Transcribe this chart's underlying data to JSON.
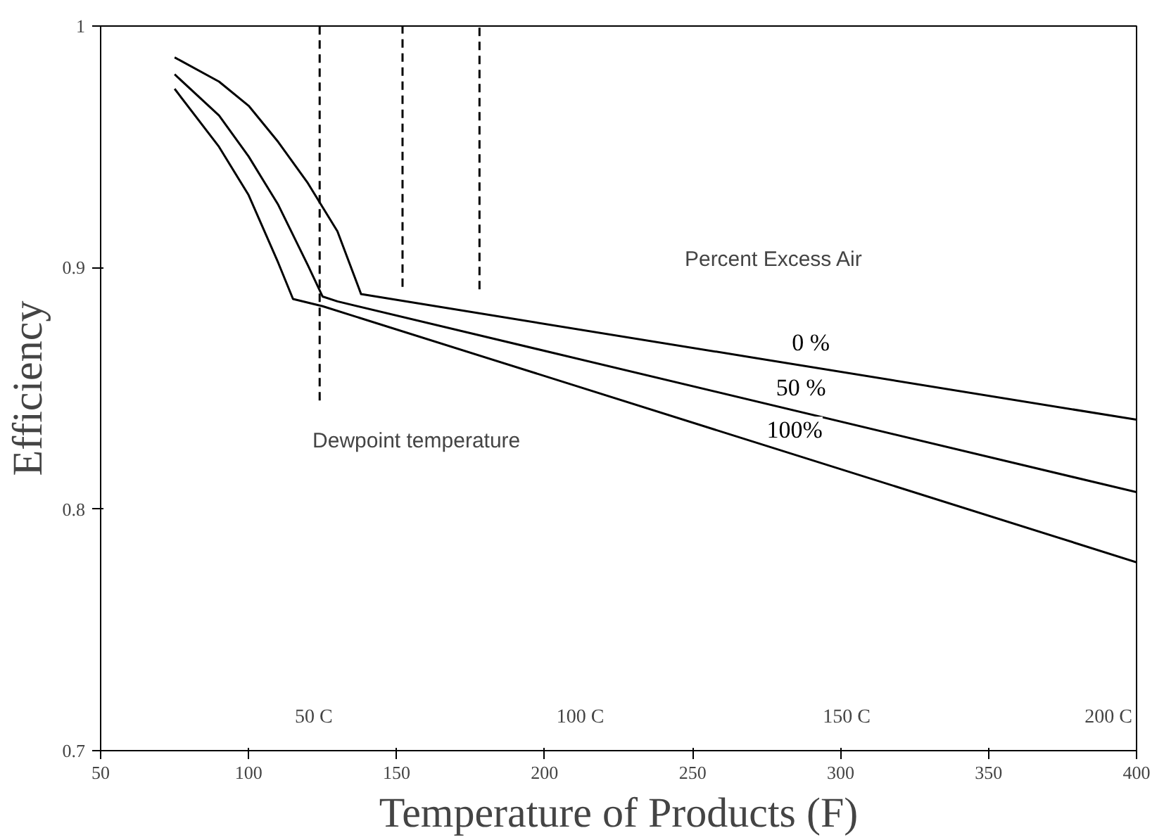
{
  "chart_data": {
    "type": "line",
    "xlabel": "Temperature of Products (F)",
    "ylabel": "Efficiency",
    "xlim": [
      50,
      400
    ],
    "xticks": [
      50,
      100,
      150,
      200,
      250,
      300,
      350,
      400
    ],
    "ylim": [
      0.7,
      1.0
    ],
    "yticks": [
      0.7,
      0.8,
      0.9,
      {
        "value": 1.0,
        "label": "1"
      }
    ],
    "grid": false,
    "marker": "none",
    "line_style": "solid",
    "series": [
      {
        "name": "0 %",
        "color": "#000000",
        "x": [
          75,
          90,
          100,
          110,
          120,
          130,
          138,
          400
        ],
        "values": [
          0.987,
          0.977,
          0.967,
          0.952,
          0.935,
          0.915,
          0.889,
          0.837
        ]
      },
      {
        "name": "50 %",
        "color": "#000000",
        "x": [
          75,
          90,
          100,
          110,
          120,
          125,
          130,
          400
        ],
        "values": [
          0.98,
          0.963,
          0.946,
          0.926,
          0.901,
          0.888,
          0.886,
          0.807
        ]
      },
      {
        "name": "100%",
        "color": "#000000",
        "x": [
          75,
          90,
          100,
          110,
          115,
          125,
          400
        ],
        "values": [
          0.974,
          0.95,
          0.93,
          0.902,
          0.887,
          0.884,
          0.778
        ]
      },
      {
        "color": "#000000",
        "line_style": "dashed",
        "x": [
          124,
          124
        ],
        "values": [
          0.845,
          1.0
        ]
      },
      {
        "color": "#000000",
        "line_style": "dashed",
        "x": [
          152,
          152
        ],
        "values": [
          0.892,
          1.0
        ]
      },
      {
        "color": "#000000",
        "line_style": "dashed",
        "x": [
          178,
          178
        ],
        "values": [
          0.891,
          1.0
        ]
      }
    ],
    "x2lim": [
      10,
      204.4
    ],
    "x2ticks": [
      {
        "value": 50,
        "label": "50 C"
      },
      {
        "value": 100,
        "label": "100 C"
      },
      {
        "value": 150,
        "label": "150 C"
      },
      {
        "value": 200,
        "label": "200 C"
      }
    ],
    "annotations": [
      "Percent Excess Air",
      "Dewpoint temperature"
    ]
  }
}
